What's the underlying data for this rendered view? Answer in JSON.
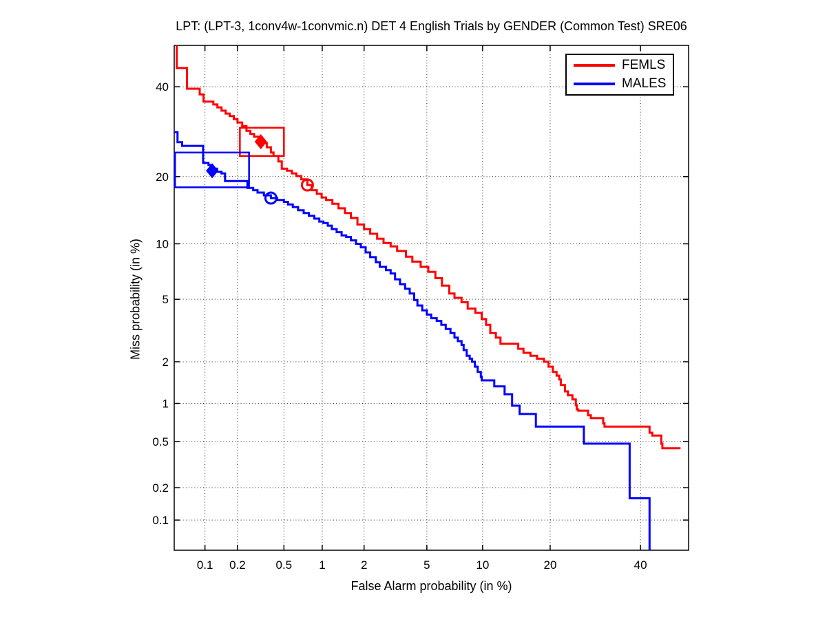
{
  "chart_data": {
    "type": "line",
    "subtype": "DET curve (step plot on normal-deviate / probit scale)",
    "title": "LPT: (LPT-3, 1conv4w-1convmic.n) DET 4 English Trials by GENDER (Common Test) SRE06",
    "xlabel": "False Alarm probability (in %)",
    "ylabel": "Miss probability (in %)",
    "x_ticks": [
      "0.1",
      "0.2",
      "0.5",
      "1",
      "2",
      "5",
      "10",
      "20",
      "40"
    ],
    "y_ticks": [
      "0.1",
      "0.2",
      "0.5",
      "1",
      "2",
      "5",
      "10",
      "20",
      "40"
    ],
    "xlim_pct": [
      0.05,
      52.4
    ],
    "ylim_pct": [
      0.0505,
      50.7
    ],
    "grid": "dotted",
    "legend_position": "top-right",
    "series": [
      {
        "name": "FEMLS",
        "color": "#ff0000",
        "operating_point_circle": [
          0.77,
          18.5
        ],
        "min_dcf_point": [
          0.32,
          27.0
        ],
        "min_dcf_box": {
          "fa": [
            0.21,
            0.5
          ],
          "miss": [
            24.0,
            30.1
          ]
        },
        "points": [
          [
            0.053,
            50.7
          ],
          [
            0.053,
            44.8
          ],
          [
            0.067,
            44.8
          ],
          [
            0.067,
            39.5
          ],
          [
            0.089,
            39.5
          ],
          [
            0.089,
            38.1
          ],
          [
            0.097,
            38.1
          ],
          [
            0.097,
            36.3
          ],
          [
            0.11,
            36.3
          ],
          [
            0.12,
            35.6
          ],
          [
            0.131,
            34.9
          ],
          [
            0.143,
            34.1
          ],
          [
            0.156,
            33.4
          ],
          [
            0.17,
            32.8
          ],
          [
            0.185,
            32.1
          ],
          [
            0.2,
            31.3
          ],
          [
            0.22,
            30.5
          ],
          [
            0.24,
            29.4
          ],
          [
            0.26,
            28.7
          ],
          [
            0.28,
            28.1
          ],
          [
            0.31,
            27.5
          ],
          [
            0.33,
            26.7
          ],
          [
            0.36,
            25.8
          ],
          [
            0.39,
            24.7
          ],
          [
            0.41,
            24.0
          ],
          [
            0.45,
            22.9
          ],
          [
            0.48,
            21.5
          ],
          [
            0.53,
            21.1
          ],
          [
            0.58,
            20.6
          ],
          [
            0.63,
            20.1
          ],
          [
            0.69,
            19.5
          ],
          [
            0.77,
            18.5
          ],
          [
            0.83,
            17.6
          ],
          [
            0.91,
            17.0
          ],
          [
            0.99,
            16.4
          ],
          [
            1.07,
            16.0
          ],
          [
            1.19,
            15.4
          ],
          [
            1.32,
            14.7
          ],
          [
            1.47,
            14.0
          ],
          [
            1.62,
            13.3
          ],
          [
            1.8,
            12.4
          ],
          [
            2.0,
            11.8
          ],
          [
            2.2,
            11.2
          ],
          [
            2.45,
            10.6
          ],
          [
            2.7,
            10.1
          ],
          [
            3.0,
            9.7
          ],
          [
            3.3,
            9.2
          ],
          [
            3.75,
            8.6
          ],
          [
            4.1,
            8.1
          ],
          [
            4.6,
            7.6
          ],
          [
            5.1,
            7.15
          ],
          [
            5.6,
            6.6
          ],
          [
            6.1,
            6.0
          ],
          [
            6.7,
            5.4
          ],
          [
            7.15,
            5.1
          ],
          [
            7.8,
            5.1
          ],
          [
            7.8,
            4.8
          ],
          [
            8.4,
            4.4
          ],
          [
            9.2,
            4.15
          ],
          [
            9.9,
            3.8
          ],
          [
            10.4,
            3.5
          ],
          [
            10.9,
            3.1
          ],
          [
            11.6,
            2.9
          ],
          [
            12.2,
            2.7
          ],
          [
            12.2,
            2.64
          ],
          [
            14.1,
            2.64
          ],
          [
            14.7,
            2.45
          ],
          [
            15.5,
            2.3
          ],
          [
            16.6,
            2.2
          ],
          [
            17.7,
            2.1
          ],
          [
            18.9,
            2.0
          ],
          [
            19.7,
            1.85
          ],
          [
            20.5,
            1.7
          ],
          [
            21.2,
            1.6
          ],
          [
            21.7,
            1.5
          ],
          [
            22.0,
            1.37
          ],
          [
            22.8,
            1.23
          ],
          [
            23.4,
            1.15
          ],
          [
            24.3,
            1.07
          ],
          [
            25.0,
            0.97
          ],
          [
            25.2,
            0.9
          ],
          [
            25.5,
            0.88
          ],
          [
            27.3,
            0.88
          ],
          [
            27.6,
            0.81
          ],
          [
            28.2,
            0.77
          ],
          [
            30.5,
            0.77
          ],
          [
            31.0,
            0.7
          ],
          [
            31.3,
            0.66
          ],
          [
            41.9,
            0.66
          ],
          [
            42.3,
            0.59
          ],
          [
            43.0,
            0.56
          ],
          [
            44.9,
            0.56
          ],
          [
            45.3,
            0.48
          ],
          [
            45.6,
            0.44
          ],
          [
            50.3,
            0.44
          ]
        ]
      },
      {
        "name": "MALES",
        "color": "#0000ff",
        "operating_point_circle": [
          0.39,
          16.3
        ],
        "min_dcf_point": [
          0.117,
          21.1
        ],
        "min_dcf_box": {
          "fa": [
            0.051,
            0.253
          ],
          "miss": [
            18.1,
            24.7
          ]
        },
        "points": [
          [
            0.05,
            29.1
          ],
          [
            0.054,
            29.1
          ],
          [
            0.054,
            26.9
          ],
          [
            0.06,
            26.9
          ],
          [
            0.06,
            26.1
          ],
          [
            0.096,
            26.1
          ],
          [
            0.096,
            22.6
          ],
          [
            0.108,
            22.2
          ],
          [
            0.117,
            21.5
          ],
          [
            0.13,
            20.9
          ],
          [
            0.143,
            20.6
          ],
          [
            0.154,
            20.2
          ],
          [
            0.154,
            19.2
          ],
          [
            0.245,
            19.2
          ],
          [
            0.245,
            18.0
          ],
          [
            0.275,
            17.6
          ],
          [
            0.3,
            17.2
          ],
          [
            0.34,
            16.75
          ],
          [
            0.39,
            16.3
          ],
          [
            0.44,
            16.0
          ],
          [
            0.5,
            15.7
          ],
          [
            0.54,
            15.3
          ],
          [
            0.59,
            14.9
          ],
          [
            0.65,
            14.4
          ],
          [
            0.72,
            14.0
          ],
          [
            0.79,
            13.6
          ],
          [
            0.87,
            13.2
          ],
          [
            0.95,
            12.8
          ],
          [
            1.02,
            12.6
          ],
          [
            1.1,
            12.25
          ],
          [
            1.18,
            11.8
          ],
          [
            1.28,
            11.4
          ],
          [
            1.39,
            11.0
          ],
          [
            1.5,
            10.8
          ],
          [
            1.62,
            10.4
          ],
          [
            1.76,
            10.0
          ],
          [
            1.9,
            9.6
          ],
          [
            2.05,
            9.05
          ],
          [
            2.2,
            8.55
          ],
          [
            2.4,
            8.05
          ],
          [
            2.55,
            7.6
          ],
          [
            2.8,
            7.3
          ],
          [
            3.0,
            7.0
          ],
          [
            3.2,
            6.5
          ],
          [
            3.44,
            6.1
          ],
          [
            3.7,
            5.75
          ],
          [
            3.95,
            5.4
          ],
          [
            4.2,
            4.95
          ],
          [
            4.4,
            4.6
          ],
          [
            4.7,
            4.3
          ],
          [
            5.0,
            4.05
          ],
          [
            5.3,
            3.85
          ],
          [
            5.7,
            3.7
          ],
          [
            6.05,
            3.5
          ],
          [
            6.4,
            3.3
          ],
          [
            6.8,
            3.1
          ],
          [
            7.15,
            2.9
          ],
          [
            7.45,
            2.75
          ],
          [
            7.8,
            2.6
          ],
          [
            8.0,
            2.4
          ],
          [
            8.3,
            2.2
          ],
          [
            8.6,
            2.1
          ],
          [
            8.85,
            2.0
          ],
          [
            9.15,
            1.85
          ],
          [
            9.45,
            1.7
          ],
          [
            9.8,
            1.56
          ],
          [
            9.9,
            1.48
          ],
          [
            11.4,
            1.48
          ],
          [
            11.4,
            1.34
          ],
          [
            12.75,
            1.34
          ],
          [
            12.75,
            1.17
          ],
          [
            13.7,
            1.17
          ],
          [
            13.8,
            0.96
          ],
          [
            14.9,
            0.96
          ],
          [
            14.9,
            0.83
          ],
          [
            17.5,
            0.83
          ],
          [
            17.5,
            0.66
          ],
          [
            26.7,
            0.66
          ],
          [
            26.7,
            0.48
          ],
          [
            37.1,
            0.48
          ],
          [
            37.3,
            0.16
          ],
          [
            42.3,
            0.16
          ],
          [
            42.3,
            0.05
          ]
        ]
      }
    ]
  }
}
